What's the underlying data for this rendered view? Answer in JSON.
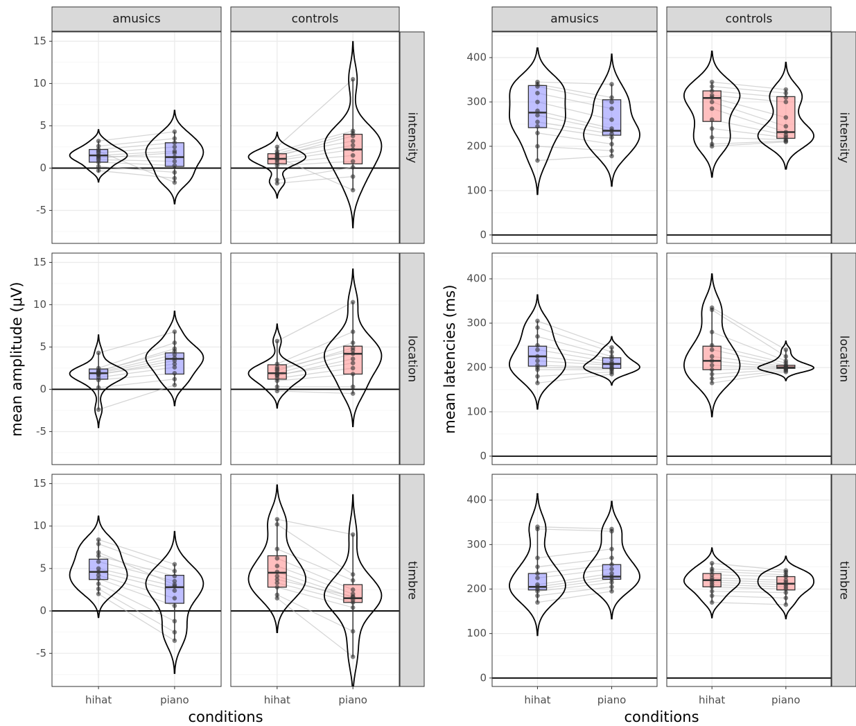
{
  "chart_data": [
    {
      "type": "violin",
      "ylabel": "mean amplitude (μV)",
      "xlabel": "conditions",
      "columns": [
        "amusics",
        "controls"
      ],
      "rows": [
        "intensity",
        "location",
        "timbre"
      ],
      "categories": [
        "hihat",
        "piano"
      ],
      "colors": [
        "#8080ff",
        "#ff8080"
      ],
      "ylim": [
        -8.9,
        16.1
      ],
      "yticks": [
        -5,
        0,
        5,
        10,
        15
      ],
      "hline": 0,
      "grid": true,
      "panels": [
        {
          "groups": [
            {
              "box": [
                -0.5,
                0.7,
                1.5,
                2.2,
                3.2
              ],
              "points": [
                3.2,
                2.6,
                2.2,
                1.8,
                1.5,
                1.4,
                1.0,
                0.7,
                0.2,
                -0.3,
                2.0,
                1.2
              ]
            },
            {
              "box": [
                -1.7,
                0.2,
                1.3,
                3,
                4.3
              ],
              "points": [
                4.3,
                3.5,
                3,
                2.5,
                2,
                1.3,
                0.8,
                0.3,
                -0.5,
                -1.2,
                -1.7,
                1.8
              ]
            }
          ]
        },
        {
          "groups": [
            {
              "box": [
                -1.8,
                0.5,
                1.1,
                1.7,
                2.5
              ],
              "points": [
                2.5,
                2,
                1.7,
                1.4,
                1.1,
                0.9,
                0.6,
                0.3,
                -1.4,
                -1.8,
                1.3,
                1.6
              ]
            },
            {
              "box": [
                -2.6,
                0.5,
                2.2,
                4,
                10.5
              ],
              "points": [
                10.5,
                4.4,
                4.1,
                3.8,
                2.7,
                2.2,
                1.5,
                0.8,
                0.1,
                -1,
                -2.6,
                3.2
              ]
            }
          ]
        },
        {
          "groups": [
            {
              "box": [
                -2.4,
                1.2,
                1.9,
                2.4,
                4.3
              ],
              "points": [
                4.3,
                2.5,
                2.2,
                2,
                1.9,
                1.7,
                1.4,
                1.1,
                0.2,
                -2.4,
                1.8,
                2.1
              ]
            },
            {
              "box": [
                0.5,
                1.8,
                3.6,
                4.3,
                6.8
              ],
              "points": [
                6.8,
                5.5,
                4.5,
                4.1,
                3.7,
                3.4,
                2.6,
                1.9,
                1.2,
                0.5,
                3,
                4.8
              ]
            }
          ]
        },
        {
          "groups": [
            {
              "box": [
                -0.2,
                1.2,
                1.9,
                2.9,
                5.7
              ],
              "points": [
                5.7,
                3,
                2.6,
                2.2,
                1.9,
                1.6,
                1.3,
                1,
                0.3,
                -0.2,
                2.4,
                1.7
              ]
            },
            {
              "box": [
                -0.5,
                1.8,
                4.2,
                5.1,
                10.3
              ],
              "points": [
                10.3,
                6.8,
                5.5,
                4.9,
                4.2,
                3.6,
                2.5,
                1.8,
                0.3,
                -0.5,
                4.6,
                3.1
              ]
            }
          ]
        },
        {
          "groups": [
            {
              "box": [
                2,
                3.7,
                4.6,
                6.1,
                8.4
              ],
              "points": [
                8.4,
                7.9,
                6.5,
                5.8,
                5,
                4.6,
                4.2,
                3.8,
                3.2,
                2.6,
                2,
                6.9
              ]
            },
            {
              "box": [
                -3.5,
                0.9,
                2.8,
                4.2,
                5.5
              ],
              "points": [
                5.5,
                4.7,
                4.1,
                3.5,
                2.9,
                2.4,
                1.5,
                0.6,
                -1.2,
                -2.5,
                -3.5,
                3.1
              ]
            }
          ]
        },
        {
          "groups": [
            {
              "box": [
                1.5,
                2.8,
                4.5,
                6.5,
                10.8
              ],
              "points": [
                10.8,
                10.2,
                7.3,
                6.2,
                5.3,
                4.6,
                4.1,
                3.3,
                2.8,
                1.9,
                1.5,
                3.7
              ]
            },
            {
              "box": [
                -5.4,
                1,
                1.5,
                3.1,
                9
              ],
              "points": [
                9,
                4.3,
                3.6,
                2.5,
                2,
                1.6,
                1.3,
                1,
                0.4,
                -2.4,
                -5.4,
                1.7
              ]
            }
          ]
        }
      ]
    },
    {
      "type": "violin",
      "ylabel": "mean latencies (ms)",
      "xlabel": "conditions",
      "columns": [
        "amusics",
        "controls"
      ],
      "rows": [
        "intensity",
        "location",
        "timbre"
      ],
      "categories": [
        "hihat",
        "piano"
      ],
      "colors": [
        "#8080ff",
        "#ff8080"
      ],
      "ylim": [
        -19,
        458
      ],
      "yticks": [
        0,
        100,
        200,
        300,
        400
      ],
      "hline": 0,
      "grid": true,
      "panels": [
        {
          "groups": [
            {
              "box": [
                168,
                242,
                276,
                337,
                345
              ],
              "points": [
                345,
                340,
                335,
                320,
                300,
                280,
                270,
                255,
                245,
                230,
                200,
                168
              ]
            },
            {
              "box": [
                178,
                225,
                235,
                305,
                340
              ],
              "points": [
                340,
                310,
                300,
                285,
                260,
                240,
                235,
                228,
                220,
                205,
                190,
                178
              ]
            }
          ]
        },
        {
          "groups": [
            {
              "box": [
                200,
                256,
                309,
                325,
                345
              ],
              "points": [
                345,
                335,
                325,
                315,
                310,
                300,
                285,
                260,
                240,
                220,
                205,
                200
              ]
            },
            {
              "box": [
                210,
                218,
                232,
                312,
                328
              ],
              "points": [
                328,
                320,
                310,
                300,
                265,
                245,
                232,
                225,
                220,
                215,
                212,
                210
              ]
            }
          ]
        },
        {
          "groups": [
            {
              "box": [
                165,
                203,
                225,
                248,
                305
              ],
              "points": [
                305,
                290,
                270,
                250,
                240,
                225,
                215,
                205,
                200,
                195,
                180,
                165
              ]
            },
            {
              "box": [
                185,
                198,
                208,
                222,
                245
              ],
              "points": [
                245,
                235,
                225,
                220,
                212,
                208,
                205,
                200,
                198,
                195,
                190,
                185
              ]
            }
          ]
        },
        {
          "groups": [
            {
              "box": [
                165,
                195,
                215,
                248,
                335
              ],
              "points": [
                335,
                330,
                280,
                250,
                240,
                225,
                215,
                205,
                195,
                185,
                175,
                165
              ]
            },
            {
              "box": [
                190,
                198,
                200,
                205,
                240
              ],
              "points": [
                240,
                225,
                215,
                210,
                205,
                202,
                200,
                199,
                198,
                196,
                193,
                190
              ]
            }
          ]
        },
        {
          "groups": [
            {
              "box": [
                170,
                198,
                205,
                235,
                340
              ],
              "points": [
                340,
                335,
                270,
                250,
                235,
                225,
                210,
                205,
                200,
                195,
                185,
                170
              ]
            },
            {
              "box": [
                195,
                222,
                228,
                255,
                335
              ],
              "points": [
                335,
                330,
                290,
                270,
                255,
                245,
                235,
                228,
                222,
                215,
                205,
                195
              ]
            }
          ]
        },
        {
          "groups": [
            {
              "box": [
                170,
                205,
                220,
                235,
                258
              ],
              "points": [
                258,
                245,
                240,
                232,
                225,
                220,
                215,
                210,
                205,
                195,
                185,
                170
              ]
            },
            {
              "box": [
                165,
                198,
                212,
                228,
                242
              ],
              "points": [
                242,
                238,
                232,
                228,
                220,
                215,
                210,
                205,
                200,
                192,
                180,
                165
              ]
            }
          ]
        }
      ]
    }
  ]
}
